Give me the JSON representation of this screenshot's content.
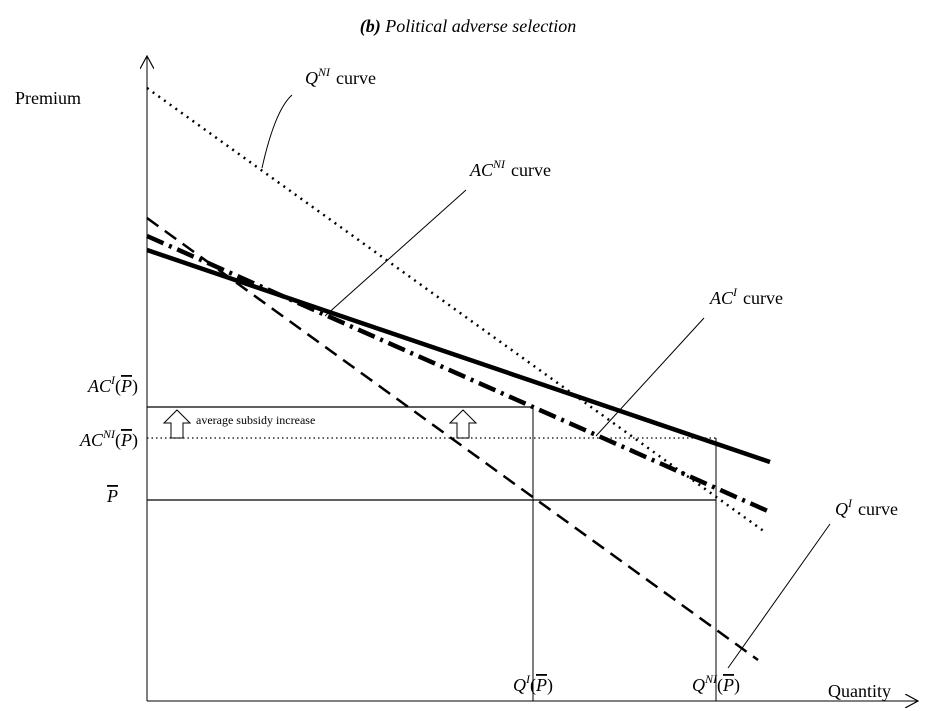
{
  "title": {
    "marker": "(b)",
    "text": "Political adverse selection"
  },
  "axes": {
    "y_label": "Premium",
    "x_label": "Quantity"
  },
  "curves": [
    {
      "base": "Q",
      "sup": "NI",
      "suffix": "curve"
    },
    {
      "base": "AC",
      "sup": "NI",
      "suffix": "curve"
    },
    {
      "base": "AC",
      "sup": "I",
      "suffix": "curve"
    },
    {
      "base": "Q",
      "sup": "I",
      "suffix": "curve"
    }
  ],
  "y_labels": [
    {
      "base": "AC",
      "sup": "I",
      "open": "(",
      "arg": "P",
      "close": ")"
    },
    {
      "base": "AC",
      "sup": "NI",
      "open": "(",
      "arg": "P",
      "close": ")"
    },
    {
      "arg": "P"
    }
  ],
  "x_labels": [
    {
      "base": "Q",
      "sup": "I",
      "open": "(",
      "arg": "P",
      "close": ")"
    },
    {
      "base": "Q",
      "sup": "NI",
      "open": "(",
      "arg": "P",
      "close": ")"
    }
  ],
  "annotation": "average subsidy increase"
}
